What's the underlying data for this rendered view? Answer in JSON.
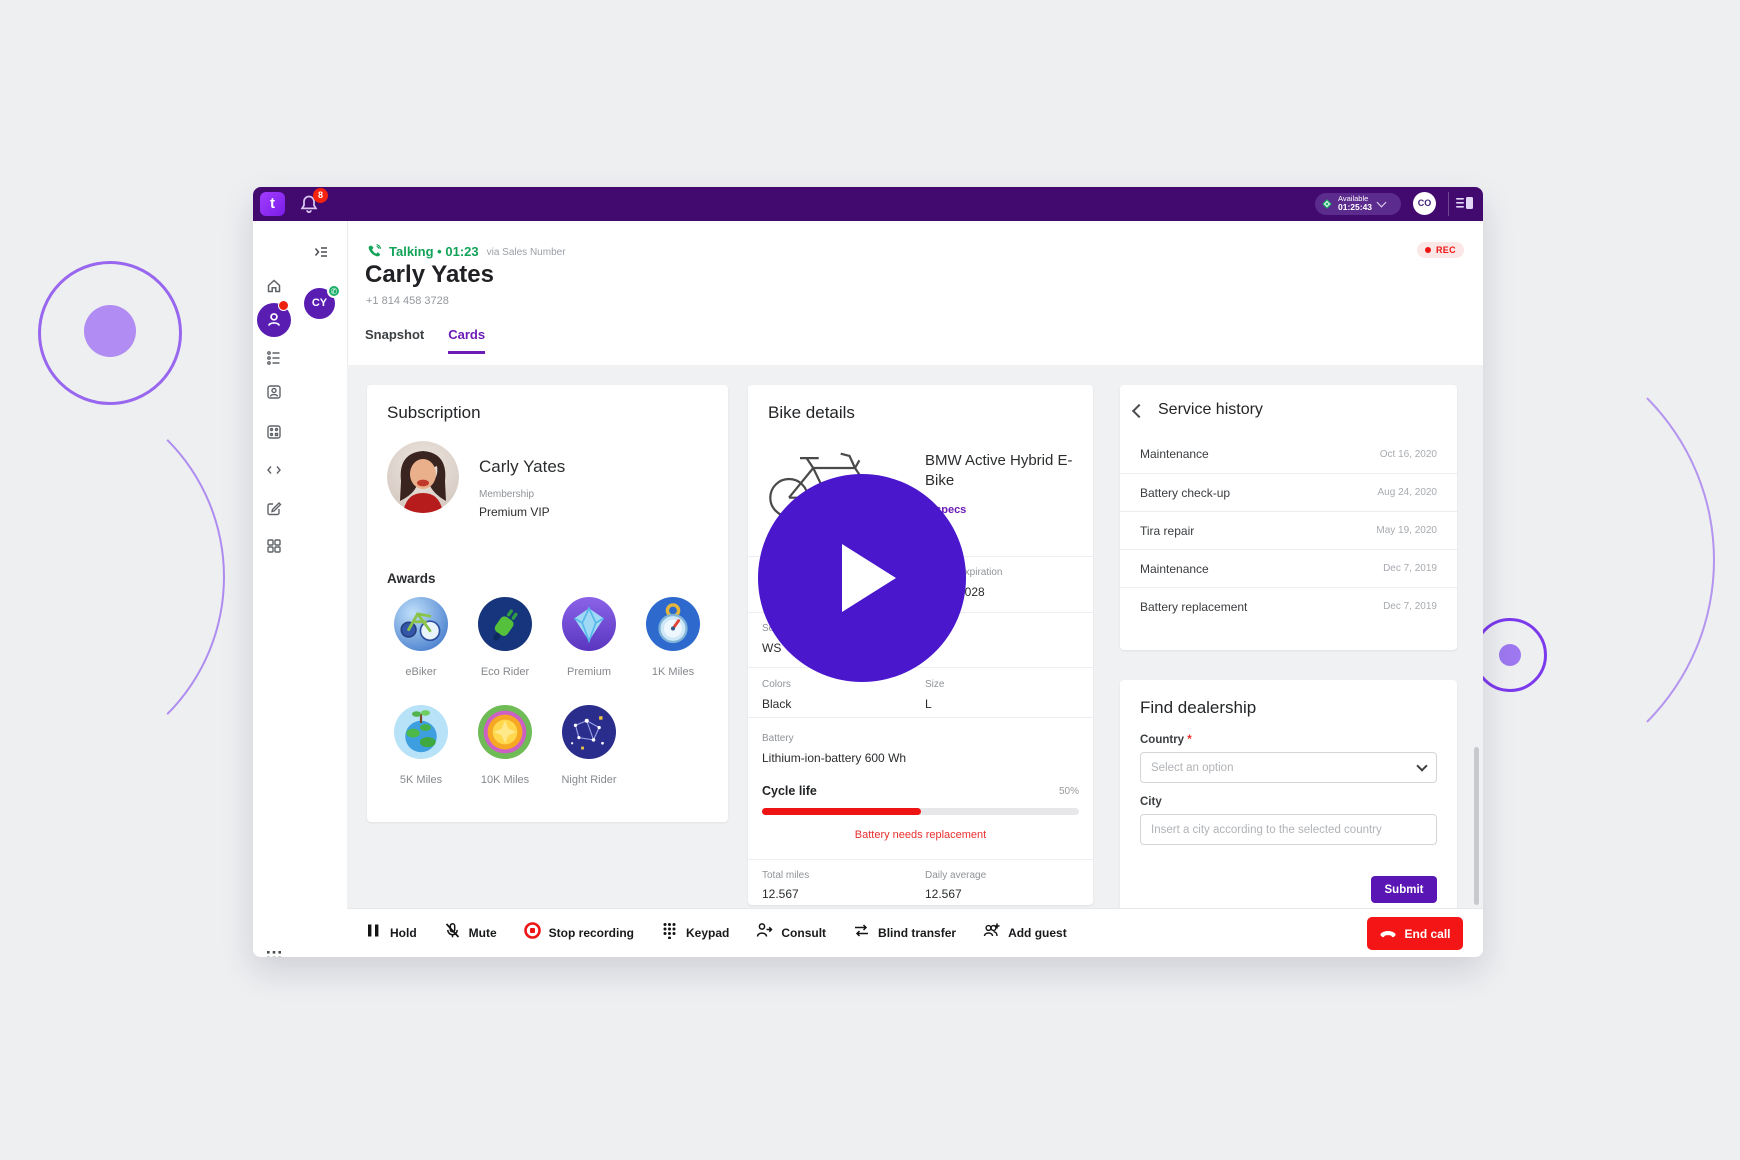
{
  "topbar": {
    "notification_count": "8",
    "status_label": "Available",
    "status_timer": "01:25:43",
    "user_initials": "CO"
  },
  "sidebar": {
    "contact_initials": "CY"
  },
  "call": {
    "state": "Talking",
    "separator": "•",
    "timer": "01:23",
    "via": "via Sales Number",
    "contact_name": "Carly Yates",
    "contact_phone": "+1 814 458 3728",
    "rec": "REC"
  },
  "tabs": {
    "snapshot": "Snapshot",
    "cards": "Cards"
  },
  "subscription": {
    "title": "Subscription",
    "customer_name": "Carly Yates",
    "membership_label": "Membership",
    "membership_value": "Premium VIP",
    "awards_title": "Awards",
    "awards": [
      {
        "label": "eBiker"
      },
      {
        "label": "Eco Rider"
      },
      {
        "label": "Premium"
      },
      {
        "label": "1K Miles"
      },
      {
        "label": "5K Miles"
      },
      {
        "label": "10K Miles"
      },
      {
        "label": "Night Rider"
      }
    ]
  },
  "bike": {
    "title": "Bike details",
    "model": "BMW Active Hybrid E-Bike",
    "specs_link": "All specs",
    "expiration_label": "Expiration",
    "expiration_value": "2028",
    "serial_label": "Serial number",
    "serial_value": "WS",
    "colors_label": "Colors",
    "colors_value": "Black",
    "size_label": "Size",
    "size_value": "L",
    "battery_label": "Battery",
    "battery_value": "Lithium-ion-battery 600 Wh",
    "cycle_label": "Cycle life",
    "cycle_percent": "50%",
    "cycle_value": 50,
    "battery_warning": "Battery needs replacement",
    "total_miles_label": "Total miles",
    "total_miles_value": "12.567",
    "daily_avg_label": "Daily average",
    "daily_avg_value": "12.567"
  },
  "service_history": {
    "title": "Service history",
    "rows": [
      {
        "name": "Maintenance",
        "date": "Oct 16, 2020"
      },
      {
        "name": "Battery check-up",
        "date": "Aug 24, 2020"
      },
      {
        "name": "Tira repair",
        "date": "May 19, 2020"
      },
      {
        "name": "Maintenance",
        "date": "Dec 7, 2019"
      },
      {
        "name": "Battery replacement",
        "date": "Dec 7, 2019"
      }
    ]
  },
  "find_dealership": {
    "title": "Find dealership",
    "country_label": "Country",
    "required_marker": "*",
    "country_placeholder": "Select an option",
    "city_label": "City",
    "city_placeholder": "Insert a city according to the selected country",
    "submit_label": "Submit"
  },
  "call_bar": {
    "buttons": [
      {
        "label": "Hold"
      },
      {
        "label": "Mute"
      },
      {
        "label": "Stop recording"
      },
      {
        "label": "Keypad"
      },
      {
        "label": "Consult"
      },
      {
        "label": "Blind transfer"
      },
      {
        "label": "Add guest"
      }
    ],
    "end_call_label": "End call"
  },
  "colors": {
    "topbar_purple": "#42096e",
    "accent_purple": "#6d1cb5",
    "play_purple": "#4a17cd",
    "talking_green": "#12a358",
    "alert_red": "#ee1414"
  }
}
